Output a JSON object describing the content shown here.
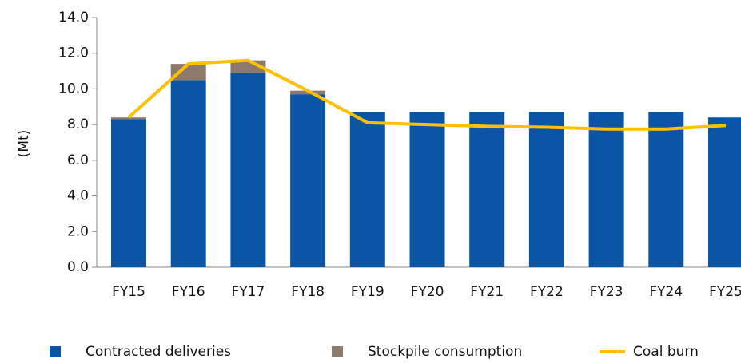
{
  "chart_data": {
    "type": "bar",
    "stacked": true,
    "y_label": "(Mt)",
    "categories": [
      "FY15",
      "FY16",
      "FY17",
      "FY18",
      "FY19",
      "FY20",
      "FY21",
      "FY22",
      "FY23",
      "FY24",
      "FY25"
    ],
    "series": [
      {
        "name": "Contracted deliveries",
        "color": "#0b56a4",
        "type": "bar",
        "values": [
          8.3,
          10.5,
          10.9,
          9.7,
          8.7,
          8.7,
          8.7,
          8.7,
          8.7,
          8.7,
          8.4
        ]
      },
      {
        "name": "Stockpile consumption",
        "color": "#8c7b6c",
        "type": "bar",
        "values": [
          0.1,
          0.9,
          0.7,
          0.2,
          0,
          0,
          0,
          0,
          0,
          0,
          0
        ]
      },
      {
        "name": "Coal burn",
        "color": "#ffc000",
        "type": "line",
        "values": [
          8.4,
          11.4,
          11.6,
          9.9,
          8.1,
          8.0,
          7.9,
          7.85,
          7.75,
          7.75,
          7.95
        ]
      }
    ],
    "ylim": [
      0,
      14
    ],
    "yticks": [
      {
        "value": 0,
        "label": "0.0"
      },
      {
        "value": 2,
        "label": "2.0"
      },
      {
        "value": 4,
        "label": "4.0"
      },
      {
        "value": 6,
        "label": "6.0"
      },
      {
        "value": 8,
        "label": "8.0"
      },
      {
        "value": 10,
        "label": "10.0"
      },
      {
        "value": 12,
        "label": "12.0"
      },
      {
        "value": 14,
        "label": "14.0"
      }
    ],
    "grid": false,
    "legend": "bottom"
  }
}
